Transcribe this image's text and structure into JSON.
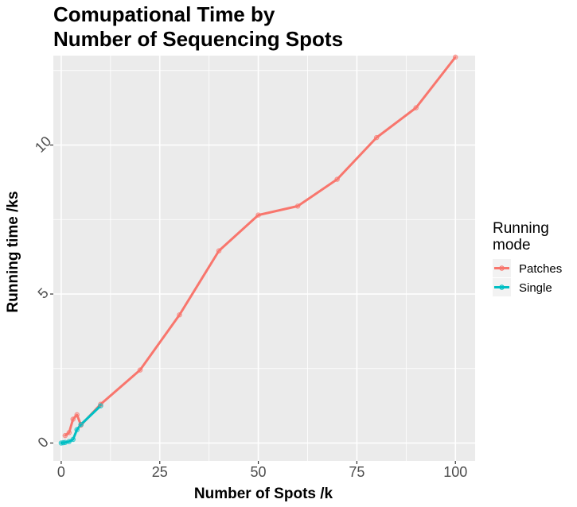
{
  "chart_data": {
    "type": "line",
    "title_lines": [
      "Comupational Time by",
      "Number of Sequencing Spots"
    ],
    "xlabel": "Number of Spots /k",
    "ylabel": "Running time /ks",
    "xlim": [
      -2,
      105
    ],
    "ylim": [
      -0.6,
      13.0
    ],
    "x_ticks": [
      0,
      25,
      50,
      75,
      100
    ],
    "x_tick_labels": [
      "0",
      "25",
      "50",
      "75",
      "100"
    ],
    "y_ticks": [
      0,
      5,
      10
    ],
    "y_tick_labels": [
      "0",
      "5",
      "10"
    ],
    "grid": true,
    "legend": {
      "title_lines": [
        "Running",
        "mode"
      ],
      "placement": "right"
    },
    "series": [
      {
        "name": "Patches",
        "color": "#F8766D",
        "points": [
          [
            1,
            0.25
          ],
          [
            2,
            0.35
          ],
          [
            3,
            0.8
          ],
          [
            4,
            0.95
          ],
          [
            5,
            0.6
          ],
          [
            10,
            1.3
          ],
          [
            20,
            2.45
          ],
          [
            30,
            4.3
          ],
          [
            40,
            6.45
          ],
          [
            50,
            7.65
          ],
          [
            60,
            7.95
          ],
          [
            70,
            8.85
          ],
          [
            80,
            10.25
          ],
          [
            90,
            11.25
          ],
          [
            100,
            12.95
          ]
        ]
      },
      {
        "name": "Single",
        "color": "#00BFC4",
        "points": [
          [
            0,
            0.0
          ],
          [
            0.5,
            0.01
          ],
          [
            1,
            0.02
          ],
          [
            2,
            0.05
          ],
          [
            3,
            0.12
          ],
          [
            4,
            0.45
          ],
          [
            5,
            0.62
          ],
          [
            10,
            1.25
          ]
        ]
      }
    ]
  }
}
